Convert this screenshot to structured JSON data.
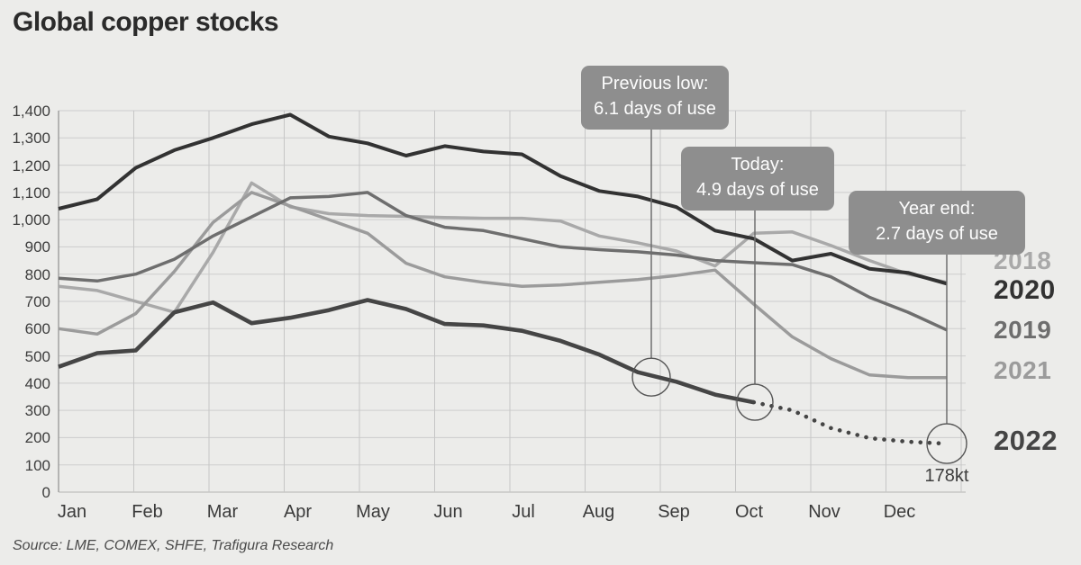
{
  "title": "Global copper stocks",
  "source": "Source: LME, COMEX, SHFE, Trafigura Research",
  "end_label": "178kt",
  "chart_data": {
    "type": "line",
    "title": "Global copper stocks",
    "unit": "kt",
    "ylim": [
      0,
      1400
    ],
    "grid": true,
    "legend_position": "right",
    "x_categories": [
      "Jan",
      "Feb",
      "Mar",
      "Apr",
      "May",
      "Jun",
      "Jul",
      "Aug",
      "Sep",
      "Oct",
      "Nov",
      "Dec"
    ],
    "y_tick_labels": [
      "0",
      "100",
      "200",
      "300",
      "400",
      "500",
      "600",
      "700",
      "800",
      "900",
      "1,000",
      "1,100",
      "1,200",
      "1,300",
      "1,400"
    ],
    "points_per_month": 2,
    "series": [
      {
        "name": "2018",
        "color": "#a9a9a9",
        "values": [
          755,
          740,
          700,
          660,
          880,
          1135,
          1047,
          1022,
          1015,
          1012,
          1008,
          1005,
          1005,
          995,
          940,
          915,
          885,
          830,
          950,
          955,
          905,
          850,
          800,
          770
        ]
      },
      {
        "name": "2021",
        "color": "#9b9b9b",
        "values": [
          600,
          580,
          655,
          810,
          990,
          1100,
          1050,
          1000,
          950,
          840,
          790,
          770,
          755,
          760,
          770,
          780,
          795,
          815,
          690,
          570,
          490,
          430,
          420,
          420
        ]
      },
      {
        "name": "2019",
        "color": "#6e6e6e",
        "values": [
          785,
          775,
          800,
          855,
          940,
          1010,
          1080,
          1085,
          1100,
          1015,
          972,
          960,
          930,
          900,
          890,
          882,
          870,
          850,
          842,
          835,
          790,
          715,
          660,
          595
        ]
      },
      {
        "name": "2020",
        "color": "#323232",
        "values": [
          1040,
          1075,
          1190,
          1255,
          1300,
          1350,
          1385,
          1305,
          1280,
          1235,
          1270,
          1250,
          1240,
          1160,
          1105,
          1085,
          1046,
          960,
          930,
          850,
          875,
          820,
          805,
          765
        ]
      },
      {
        "name": "2022",
        "color": "#454545",
        "dotted_from_index": 18,
        "end_label": "178kt",
        "values": [
          460,
          510,
          520,
          660,
          696,
          620,
          640,
          668,
          705,
          672,
          617,
          612,
          592,
          555,
          505,
          440,
          405,
          358,
          330,
          300,
          235,
          198,
          185,
          178
        ]
      }
    ],
    "annotations": [
      {
        "label": "Previous low:",
        "value": "6.1 days of use",
        "point_value": 422
      },
      {
        "label": "Today:",
        "value": "4.9 days of use",
        "point_value": 330
      },
      {
        "label": "Year end:",
        "value": "2.7 days of use",
        "point_value": 178
      }
    ]
  }
}
